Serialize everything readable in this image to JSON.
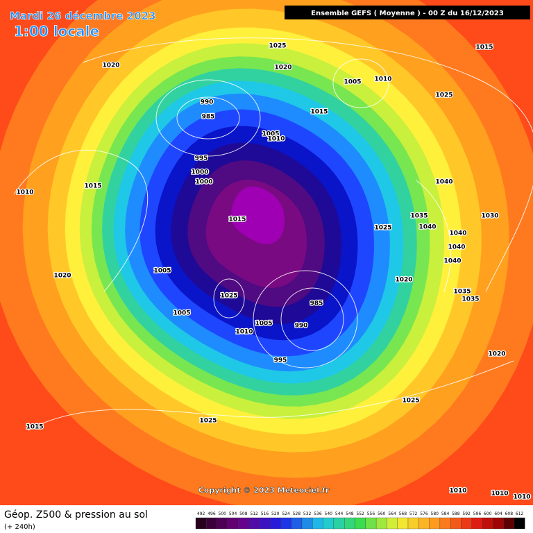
{
  "header": {
    "date": "Mardi 26 décembre 2023",
    "time": "1:00 locale",
    "model": "Ensemble GEFS  ( Moyenne )  -  00 Z du 16/12/2023"
  },
  "pressure_labels": [
    "1025",
    "1015",
    "1020",
    "1020",
    "1005",
    "1010",
    "1025",
    "990",
    "985",
    "1015",
    "1005",
    "1010",
    "995",
    "1000",
    "1000",
    "1010",
    "1015",
    "1040",
    "1015",
    "1025",
    "1035",
    "1040",
    "1030",
    "1040",
    "1040",
    "1040",
    "1005",
    "1020",
    "1020",
    "1025",
    "1035",
    "1035",
    "985",
    "1005",
    "990",
    "1010",
    "1005",
    "995",
    "1020",
    "1025",
    "1025",
    "1015",
    "1010",
    "1010",
    "1010"
  ],
  "copyright": "Copyright © 2023 Meteociel.fr",
  "footer": {
    "title": "Géop. Z500 & pression au sol",
    "subtitle": "(+ 240h)"
  },
  "legend": {
    "values": [
      492,
      496,
      500,
      504,
      508,
      512,
      516,
      520,
      524,
      528,
      532,
      536,
      540,
      544,
      548,
      552,
      556,
      560,
      564,
      568,
      572,
      576,
      580,
      584,
      588,
      592,
      596,
      600,
      604,
      608,
      612
    ]
  }
}
